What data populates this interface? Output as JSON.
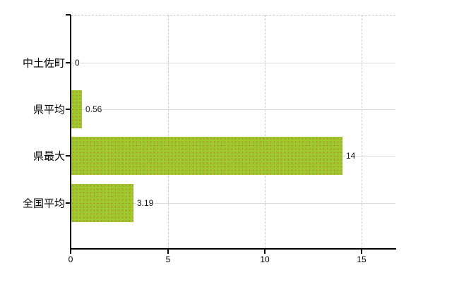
{
  "chart_data": {
    "type": "bar",
    "orientation": "horizontal",
    "categories": [
      "中土佐町",
      "県平均",
      "県最大",
      "全国平均"
    ],
    "values": [
      0,
      0.56,
      14,
      3.19
    ],
    "value_labels": [
      "0",
      "0.56",
      "14",
      "3.19"
    ],
    "x_ticks": [
      0,
      5,
      10,
      15
    ],
    "x_tick_labels": [
      "0",
      "5",
      "10",
      "15"
    ],
    "xlim": [
      0,
      16.7
    ],
    "grid": true,
    "legend": "none",
    "bar_color": "#9ec92e",
    "bar_dither_colors": [
      "#a7d335",
      "#96c32b",
      "#c67a2e"
    ],
    "gridline_color": "#cdc8cd",
    "category_line_color": "#d8dcd3",
    "axis_color": "#000000",
    "value_label_color": "#141414"
  }
}
